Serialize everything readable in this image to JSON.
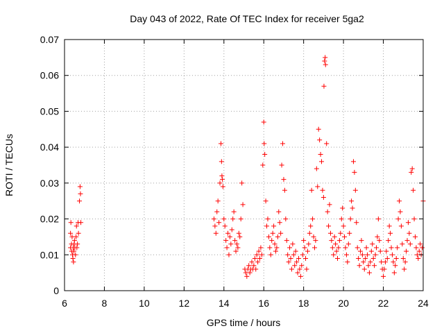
{
  "chart_data": {
    "type": "scatter",
    "title": "Day 043 of 2022, Rate Of TEC Index for receiver 5ga2",
    "xlabel": "GPS time / hours",
    "ylabel": "ROTI / TECUs",
    "xlim": [
      6,
      24
    ],
    "ylim": [
      0,
      0.07
    ],
    "xticks": [
      6,
      8,
      10,
      12,
      14,
      16,
      18,
      20,
      22,
      24
    ],
    "yticks": [
      0,
      0.01,
      0.02,
      0.03,
      0.04,
      0.05,
      0.06,
      0.07
    ],
    "ytick_labels": [
      "0",
      "0.01",
      "0.02",
      "0.03",
      "0.04",
      "0.05",
      "0.06",
      "0.07"
    ],
    "grid": true,
    "marker": "+",
    "color": "#ff0000",
    "series": [
      {
        "name": "ROTI",
        "x": [
          6.3,
          6.3,
          6.32,
          6.35,
          6.36,
          6.38,
          6.4,
          6.42,
          6.44,
          6.45,
          6.47,
          6.48,
          6.5,
          6.52,
          6.55,
          6.58,
          6.6,
          6.62,
          6.65,
          6.68,
          6.7,
          6.75,
          6.78,
          6.8,
          6.82,
          13.5,
          13.55,
          13.6,
          13.65,
          13.7,
          13.75,
          13.8,
          13.85,
          13.88,
          13.9,
          13.92,
          13.95,
          14.0,
          14.05,
          14.1,
          14.15,
          14.2,
          14.25,
          14.3,
          14.35,
          14.4,
          14.45,
          14.5,
          14.55,
          14.6,
          14.65,
          14.7,
          14.75,
          14.8,
          14.85,
          14.9,
          14.95,
          15.05,
          15.1,
          15.15,
          15.2,
          15.25,
          15.3,
          15.35,
          15.4,
          15.45,
          15.5,
          15.55,
          15.6,
          15.65,
          15.7,
          15.75,
          15.8,
          15.85,
          15.9,
          15.95,
          16.0,
          16.02,
          16.05,
          16.1,
          16.15,
          16.2,
          16.25,
          16.3,
          16.35,
          16.4,
          16.45,
          16.5,
          16.55,
          16.6,
          16.65,
          16.7,
          16.75,
          16.8,
          16.85,
          16.9,
          16.95,
          17.0,
          17.05,
          17.1,
          17.15,
          17.2,
          17.25,
          17.3,
          17.35,
          17.4,
          17.45,
          17.5,
          17.55,
          17.6,
          17.65,
          17.7,
          17.75,
          17.8,
          17.85,
          17.9,
          17.95,
          18.0,
          18.05,
          18.1,
          18.15,
          18.2,
          18.25,
          18.3,
          18.35,
          18.4,
          18.45,
          18.5,
          18.55,
          18.6,
          18.65,
          18.7,
          18.75,
          18.8,
          18.85,
          18.9,
          18.95,
          19.0,
          19.02,
          19.05,
          19.08,
          19.1,
          19.15,
          19.2,
          19.25,
          19.3,
          19.35,
          19.4,
          19.45,
          19.5,
          19.55,
          19.6,
          19.65,
          19.7,
          19.75,
          19.8,
          19.85,
          19.9,
          19.95,
          20.0,
          20.05,
          20.1,
          20.15,
          20.2,
          20.25,
          20.3,
          20.35,
          20.4,
          20.45,
          20.5,
          20.55,
          20.6,
          20.65,
          20.7,
          20.75,
          20.8,
          20.85,
          20.9,
          20.95,
          21.0,
          21.05,
          21.1,
          21.15,
          21.2,
          21.25,
          21.3,
          21.35,
          21.4,
          21.45,
          21.5,
          21.55,
          21.6,
          21.65,
          21.7,
          21.75,
          21.8,
          21.85,
          21.9,
          21.95,
          22.0,
          22.05,
          22.1,
          22.15,
          22.2,
          22.25,
          22.3,
          22.35,
          22.4,
          22.45,
          22.5,
          22.55,
          22.6,
          22.65,
          22.7,
          22.75,
          22.8,
          22.85,
          22.9,
          22.95,
          23.0,
          23.05,
          23.1,
          23.15,
          23.2,
          23.25,
          23.3,
          23.35,
          23.4,
          23.45,
          23.5,
          23.55,
          23.6,
          23.65,
          23.7,
          23.75,
          23.8,
          23.85,
          23.9,
          23.95,
          24.0
        ],
        "y": [
          0.012,
          0.016,
          0.019,
          0.013,
          0.011,
          0.015,
          0.01,
          0.009,
          0.012,
          0.008,
          0.011,
          0.013,
          0.014,
          0.012,
          0.01,
          0.015,
          0.018,
          0.012,
          0.013,
          0.019,
          0.016,
          0.025,
          0.029,
          0.027,
          0.019,
          0.02,
          0.018,
          0.016,
          0.022,
          0.025,
          0.019,
          0.03,
          0.041,
          0.036,
          0.032,
          0.031,
          0.029,
          0.02,
          0.018,
          0.014,
          0.012,
          0.016,
          0.01,
          0.015,
          0.013,
          0.017,
          0.02,
          0.022,
          0.014,
          0.011,
          0.013,
          0.012,
          0.016,
          0.015,
          0.02,
          0.03,
          0.024,
          0.006,
          0.005,
          0.004,
          0.006,
          0.007,
          0.005,
          0.006,
          0.008,
          0.006,
          0.007,
          0.009,
          0.006,
          0.01,
          0.008,
          0.011,
          0.009,
          0.012,
          0.01,
          0.035,
          0.047,
          0.041,
          0.038,
          0.025,
          0.018,
          0.02,
          0.015,
          0.012,
          0.01,
          0.014,
          0.016,
          0.018,
          0.013,
          0.011,
          0.012,
          0.015,
          0.022,
          0.019,
          0.016,
          0.035,
          0.041,
          0.031,
          0.028,
          0.02,
          0.014,
          0.01,
          0.008,
          0.012,
          0.009,
          0.006,
          0.013,
          0.01,
          0.007,
          0.011,
          0.008,
          0.005,
          0.009,
          0.006,
          0.004,
          0.007,
          0.01,
          0.014,
          0.012,
          0.009,
          0.006,
          0.011,
          0.013,
          0.016,
          0.018,
          0.028,
          0.02,
          0.015,
          0.012,
          0.014,
          0.034,
          0.029,
          0.045,
          0.042,
          0.038,
          0.036,
          0.028,
          0.026,
          0.057,
          0.064,
          0.065,
          0.063,
          0.041,
          0.022,
          0.018,
          0.024,
          0.016,
          0.014,
          0.012,
          0.01,
          0.015,
          0.013,
          0.011,
          0.009,
          0.012,
          0.014,
          0.016,
          0.02,
          0.023,
          0.018,
          0.015,
          0.012,
          0.01,
          0.008,
          0.013,
          0.016,
          0.02,
          0.025,
          0.023,
          0.036,
          0.033,
          0.028,
          0.019,
          0.012,
          0.009,
          0.007,
          0.011,
          0.014,
          0.01,
          0.008,
          0.006,
          0.009,
          0.012,
          0.01,
          0.007,
          0.005,
          0.008,
          0.011,
          0.013,
          0.009,
          0.007,
          0.01,
          0.012,
          0.015,
          0.02,
          0.014,
          0.011,
          0.008,
          0.006,
          0.004,
          0.006,
          0.008,
          0.011,
          0.009,
          0.014,
          0.018,
          0.016,
          0.012,
          0.01,
          0.008,
          0.005,
          0.007,
          0.009,
          0.012,
          0.02,
          0.025,
          0.022,
          0.018,
          0.013,
          0.009,
          0.006,
          0.008,
          0.011,
          0.014,
          0.019,
          0.016,
          0.013,
          0.033,
          0.034,
          0.028,
          0.02,
          0.015,
          0.012,
          0.01,
          0.009,
          0.011,
          0.013,
          0.01,
          0.012,
          0.025
        ]
      }
    ]
  }
}
